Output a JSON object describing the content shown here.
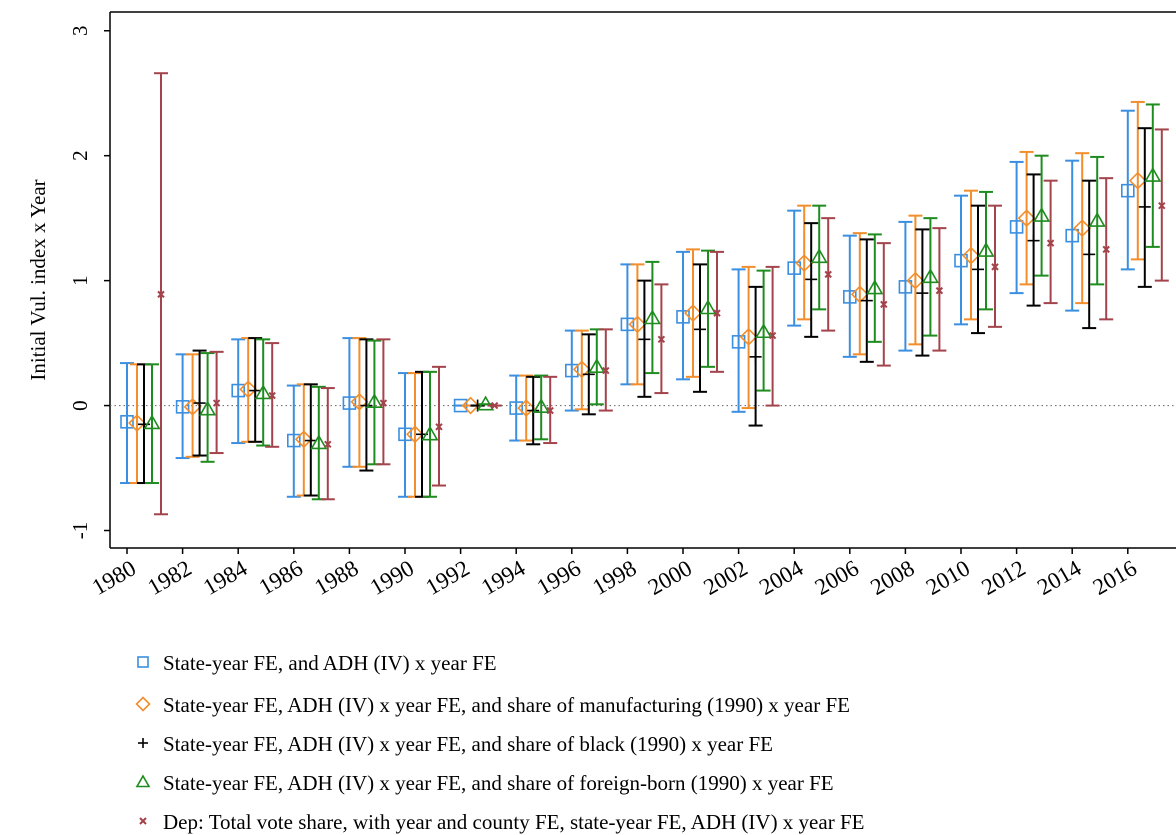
{
  "chart_data": {
    "type": "errorbar",
    "ylabel": "Initial Vul. index x Year",
    "categories": [
      "1980",
      "1982",
      "1984",
      "1986",
      "1988",
      "1990",
      "1992",
      "1994",
      "1996",
      "1998",
      "2000",
      "2002",
      "2004",
      "2006",
      "2008",
      "2010",
      "2012",
      "2014",
      "2016"
    ],
    "ylim": [
      -1.14,
      3.15
    ],
    "yticks": [
      -1,
      0,
      1,
      2,
      3
    ],
    "zero_line": true,
    "series": [
      {
        "name": "State-year FE, and ADH (IV) x year FE",
        "color": "#3b8fe0",
        "marker": "square",
        "values": [
          -0.13,
          -0.01,
          0.12,
          -0.28,
          0.02,
          -0.23,
          0,
          -0.02,
          0.28,
          0.65,
          0.71,
          0.51,
          1.1,
          0.87,
          0.95,
          1.16,
          1.43,
          1.36,
          1.72
        ],
        "lower": [
          -0.62,
          -0.42,
          -0.3,
          -0.73,
          -0.49,
          -0.73,
          0,
          -0.28,
          -0.04,
          0.17,
          0.21,
          -0.05,
          0.64,
          0.39,
          0.44,
          0.65,
          0.9,
          0.76,
          1.09
        ],
        "upper": [
          0.34,
          0.41,
          0.53,
          0.16,
          0.54,
          0.26,
          0,
          0.24,
          0.6,
          1.13,
          1.23,
          1.09,
          1.56,
          1.36,
          1.47,
          1.68,
          1.95,
          1.96,
          2.36
        ]
      },
      {
        "name": "State-year FE, ADH (IV) x year FE, and share of manufacturing (1990) x year FE",
        "color": "#f28e2b",
        "marker": "diamond",
        "values": [
          -0.14,
          -0.01,
          0.13,
          -0.27,
          0.03,
          -0.23,
          0,
          -0.02,
          0.29,
          0.65,
          0.74,
          0.55,
          1.14,
          0.89,
          1.0,
          1.2,
          1.5,
          1.42,
          1.8
        ],
        "lower": [
          -0.62,
          -0.41,
          -0.29,
          -0.72,
          -0.49,
          -0.73,
          0,
          -0.28,
          -0.03,
          0.17,
          0.23,
          -0.02,
          0.69,
          0.41,
          0.49,
          0.69,
          0.97,
          0.82,
          1.17
        ],
        "upper": [
          0.33,
          0.41,
          0.54,
          0.17,
          0.54,
          0.26,
          0,
          0.24,
          0.6,
          1.13,
          1.25,
          1.11,
          1.6,
          1.38,
          1.52,
          1.72,
          2.03,
          2.02,
          2.43
        ]
      },
      {
        "name": "State-year FE, ADH (IV) x year FE, and share of black (1990) x year FE",
        "color": "#000000",
        "marker": "plus",
        "values": [
          -0.15,
          0.02,
          0.12,
          -0.28,
          0.0,
          -0.23,
          0,
          -0.04,
          0.25,
          0.53,
          0.61,
          0.39,
          1.01,
          0.84,
          0.9,
          1.09,
          1.32,
          1.21,
          1.59
        ],
        "lower": [
          -0.62,
          -0.4,
          -0.29,
          -0.72,
          -0.52,
          -0.73,
          0,
          -0.31,
          -0.07,
          0.07,
          0.11,
          -0.16,
          0.55,
          0.35,
          0.4,
          0.58,
          0.8,
          0.62,
          0.95
        ],
        "upper": [
          0.33,
          0.44,
          0.54,
          0.17,
          0.53,
          0.27,
          0,
          0.23,
          0.57,
          1.0,
          1.13,
          0.95,
          1.46,
          1.33,
          1.41,
          1.6,
          1.85,
          1.8,
          2.22
        ]
      },
      {
        "name": "State-year FE, ADH (IV) x year FE, and share of foreign-born (1990) x year FE",
        "color": "#1e8c1e",
        "marker": "triangle",
        "values": [
          -0.14,
          -0.03,
          0.1,
          -0.3,
          0.03,
          -0.23,
          0.01,
          -0.01,
          0.31,
          0.7,
          0.78,
          0.59,
          1.19,
          0.94,
          1.03,
          1.24,
          1.52,
          1.48,
          1.84
        ],
        "lower": [
          -0.62,
          -0.45,
          -0.32,
          -0.75,
          -0.47,
          -0.73,
          0.01,
          -0.27,
          0.01,
          0.26,
          0.31,
          0.12,
          0.77,
          0.51,
          0.56,
          0.77,
          1.04,
          0.97,
          1.27
        ],
        "upper": [
          0.33,
          0.42,
          0.53,
          0.15,
          0.52,
          0.27,
          0.01,
          0.24,
          0.61,
          1.15,
          1.24,
          1.08,
          1.6,
          1.37,
          1.5,
          1.71,
          2.0,
          1.99,
          2.41
        ]
      },
      {
        "name": "Dep: Total vote share, with year and county FE, state-year FE, ADH (IV) x year FE",
        "color": "#a3434b",
        "marker": "cross",
        "values": [
          0.89,
          0.02,
          0.08,
          -0.31,
          0.02,
          -0.17,
          0,
          -0.04,
          0.28,
          0.53,
          0.74,
          0.56,
          1.05,
          0.81,
          0.92,
          1.11,
          1.3,
          1.25,
          1.6
        ],
        "lower": [
          -0.87,
          -0.38,
          -0.33,
          -0.75,
          -0.47,
          -0.64,
          0,
          -0.3,
          -0.04,
          0.1,
          0.27,
          0.0,
          0.6,
          0.32,
          0.44,
          0.63,
          0.82,
          0.69,
          1.0
        ],
        "upper": [
          2.66,
          0.43,
          0.5,
          0.14,
          0.53,
          0.31,
          0,
          0.23,
          0.61,
          0.97,
          1.23,
          1.11,
          1.5,
          1.3,
          1.42,
          1.6,
          1.8,
          1.82,
          2.21
        ]
      }
    ]
  }
}
